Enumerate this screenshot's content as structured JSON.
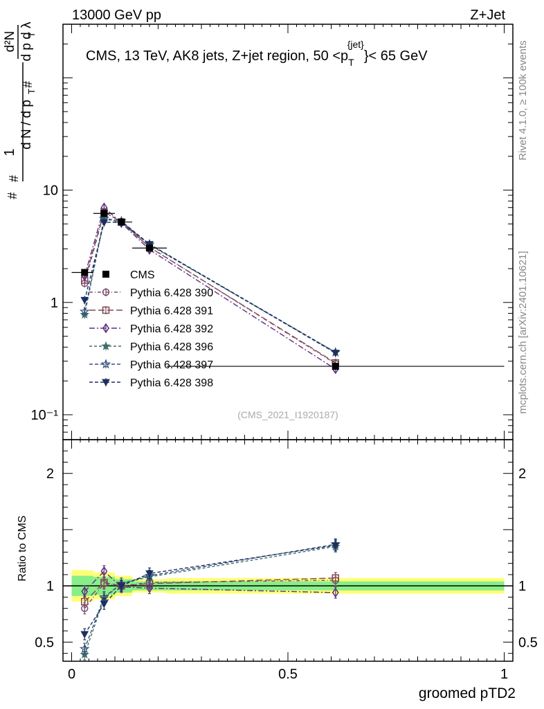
{
  "header": {
    "left": "13000 GeV pp",
    "right": "Z+Jet"
  },
  "side_labels": {
    "rivet": "Rivet 4.1.0, ≥ 100k events",
    "mcplots": "mcplots.cern.ch [arXiv:2401.10621]"
  },
  "chart_data": {
    "type": "line",
    "title_parts": {
      "prefix": "CMS, 13 TeV, AK8 jets, Z+jet region, 50 <p",
      "sub": "T",
      "sup": "{jet}",
      "suffix": "}< 65 GeV"
    },
    "analysis_id": "(CMS_2021_I1920187)",
    "xlabel": "groomed pTD2",
    "ylabel_main": "1/(dN/dp_T) d²N/(dp_T dλ)",
    "ylabel_ratio": "Ratio to CMS",
    "xlim": [
      -0.02,
      1.02
    ],
    "ylim_main": [
      0.06,
      300
    ],
    "yscale_main": "log",
    "ylim_ratio": [
      0.33,
      2.3
    ],
    "x_ticks": [
      "0",
      "0.5",
      "1"
    ],
    "y_ticks_main": [
      "10⁻¹",
      "1",
      "10"
    ],
    "y_ticks_ratio": [
      "0.5",
      "1",
      "2"
    ],
    "bin_edges": [
      0.0,
      0.05,
      0.1,
      0.14,
      0.22,
      1.0
    ],
    "x": [
      0.03,
      0.075,
      0.115,
      0.18,
      0.61
    ],
    "data": {
      "name": "CMS",
      "values": [
        1.85,
        6.2,
        5.2,
        3.05,
        0.27
      ],
      "ratio_band_inner": [
        0.09,
        0.08,
        0.06,
        0.04,
        0.04
      ],
      "ratio_band_outer": [
        0.14,
        0.12,
        0.09,
        0.06,
        0.07
      ]
    },
    "legend": [
      "CMS",
      "Pythia 6.428 390",
      "Pythia 6.428 391",
      "Pythia 6.428 392",
      "Pythia 6.428 396",
      "Pythia 6.428 397",
      "Pythia 6.428 398"
    ],
    "series": [
      {
        "name": "Pythia 6.428 390",
        "color": "#7a4a6e",
        "marker": "circle",
        "dash": "5,3,1,3",
        "values": [
          1.48,
          6.35,
          5.25,
          3.12,
          0.285
        ],
        "ratio": [
          0.8,
          1.02,
          1.0,
          1.03,
          1.05
        ]
      },
      {
        "name": "Pythia 6.428 391",
        "color": "#7d4a54",
        "marker": "square",
        "dash": "9,4",
        "values": [
          1.58,
          6.4,
          5.2,
          3.1,
          0.29
        ],
        "ratio": [
          0.86,
          1.03,
          1.0,
          1.02,
          1.07
        ]
      },
      {
        "name": "Pythia 6.428 392",
        "color": "#5e2d83",
        "marker": "diamond",
        "dash": "8,3,2,3",
        "values": [
          1.72,
          7.0,
          5.1,
          2.95,
          0.255
        ],
        "ratio": [
          0.95,
          1.13,
          0.99,
          0.98,
          0.94
        ]
      },
      {
        "name": "Pythia 6.428 396",
        "color": "#3e6e6e",
        "marker": "star",
        "dash": "4,3",
        "values": [
          0.78,
          5.5,
          5.25,
          3.25,
          0.36
        ],
        "ratio": [
          0.39,
          0.89,
          1.02,
          1.08,
          1.35
        ]
      },
      {
        "name": "Pythia 6.428 397",
        "color": "#35507a",
        "marker": "openstar",
        "dash": "5,3",
        "values": [
          0.83,
          5.6,
          5.3,
          3.3,
          0.36
        ],
        "ratio": [
          0.44,
          0.9,
          1.02,
          1.09,
          1.37
        ]
      },
      {
        "name": "Pythia 6.428 398",
        "color": "#1c2f5e",
        "marker": "triangle-down",
        "dash": "5,3",
        "values": [
          1.05,
          5.15,
          5.2,
          3.3,
          0.355
        ],
        "ratio": [
          0.57,
          0.84,
          1.0,
          1.11,
          1.36
        ]
      }
    ]
  }
}
